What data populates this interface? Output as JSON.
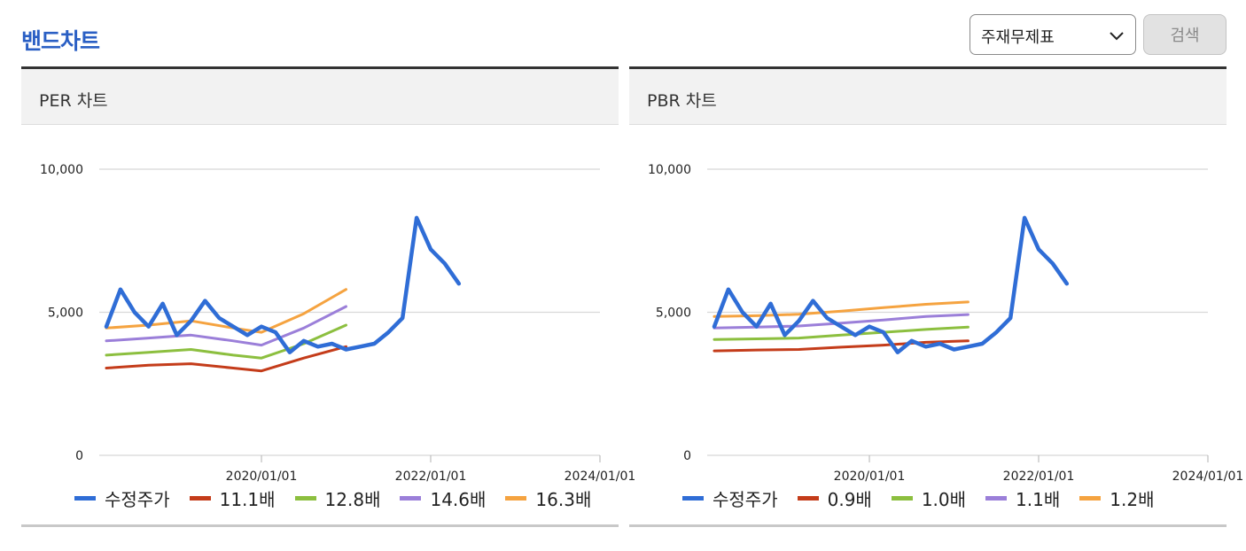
{
  "page": {
    "title": "밴드차트",
    "select": {
      "value": "주재무제표"
    },
    "search_label": "검색"
  },
  "colors": {
    "price": "#2f6dd6",
    "band1": "#c43c1a",
    "band2": "#8cbf3f",
    "band3": "#9b7fd9",
    "band4": "#f5a340"
  },
  "icons": {
    "select_chevron": "chevron-down-icon"
  },
  "chart_data": [
    {
      "type": "line",
      "title": "PER 차트",
      "ylim": [
        0,
        10000
      ],
      "y_ticks": [
        0,
        5000,
        10000
      ],
      "y_tick_labels": [
        "0",
        "5,000",
        "10,000"
      ],
      "x_ticks": [
        "2020/01/01",
        "2022/01/01",
        "2024/01/01"
      ],
      "xlim": [
        "2018/02/01",
        "2024/01/01"
      ],
      "grid": true,
      "legend_position": "bottom",
      "series": [
        {
          "name": "수정주가",
          "color": "#2f6dd6",
          "x": [
            "2018/03",
            "2018/05",
            "2018/07",
            "2018/09",
            "2018/11",
            "2019/01",
            "2019/03",
            "2019/05",
            "2019/07",
            "2019/09",
            "2019/11",
            "2020/01",
            "2020/03",
            "2020/05",
            "2020/07",
            "2020/09",
            "2020/11",
            "2021/01",
            "2021/03",
            "2021/05",
            "2021/07",
            "2021/09",
            "2021/11",
            "2022/01",
            "2022/03",
            "2022/05"
          ],
          "y": [
            4500,
            5800,
            5000,
            4500,
            5300,
            4200,
            4700,
            5400,
            4800,
            4500,
            4200,
            4500,
            4300,
            3600,
            4000,
            3800,
            3900,
            3700,
            3800,
            3900,
            4300,
            4800,
            8300,
            7200,
            6700,
            6000
          ]
        },
        {
          "name": "11.1배",
          "color": "#c43c1a",
          "x": [
            "2018/03",
            "2018/09",
            "2019/03",
            "2019/09",
            "2020/01",
            "2020/07",
            "2021/01"
          ],
          "y": [
            3050,
            3150,
            3200,
            3050,
            2950,
            3400,
            3800
          ]
        },
        {
          "name": "12.8배",
          "color": "#8cbf3f",
          "x": [
            "2018/03",
            "2018/09",
            "2019/03",
            "2019/09",
            "2020/01",
            "2020/07",
            "2021/01"
          ],
          "y": [
            3500,
            3600,
            3700,
            3500,
            3400,
            3900,
            4550
          ]
        },
        {
          "name": "14.6배",
          "color": "#9b7fd9",
          "x": [
            "2018/03",
            "2018/09",
            "2019/03",
            "2019/09",
            "2020/01",
            "2020/07",
            "2021/01"
          ],
          "y": [
            4000,
            4100,
            4200,
            4000,
            3850,
            4450,
            5200
          ]
        },
        {
          "name": "16.3배",
          "color": "#f5a340",
          "x": [
            "2018/03",
            "2018/09",
            "2019/03",
            "2019/09",
            "2020/01",
            "2020/07",
            "2021/01"
          ],
          "y": [
            4450,
            4550,
            4700,
            4450,
            4300,
            4950,
            5800
          ]
        }
      ]
    },
    {
      "type": "line",
      "title": "PBR 차트",
      "ylim": [
        0,
        10000
      ],
      "y_ticks": [
        0,
        5000,
        10000
      ],
      "y_tick_labels": [
        "0",
        "5,000",
        "10,000"
      ],
      "x_ticks": [
        "2020/01/01",
        "2022/01/01",
        "2024/01/01"
      ],
      "xlim": [
        "2018/02/01",
        "2024/01/01"
      ],
      "grid": true,
      "legend_position": "bottom",
      "series": [
        {
          "name": "수정주가",
          "color": "#2f6dd6",
          "x": [
            "2018/03",
            "2018/05",
            "2018/07",
            "2018/09",
            "2018/11",
            "2019/01",
            "2019/03",
            "2019/05",
            "2019/07",
            "2019/09",
            "2019/11",
            "2020/01",
            "2020/03",
            "2020/05",
            "2020/07",
            "2020/09",
            "2020/11",
            "2021/01",
            "2021/03",
            "2021/05",
            "2021/07",
            "2021/09",
            "2021/11",
            "2022/01",
            "2022/03",
            "2022/05"
          ],
          "y": [
            4500,
            5800,
            5000,
            4500,
            5300,
            4200,
            4700,
            5400,
            4800,
            4500,
            4200,
            4500,
            4300,
            3600,
            4000,
            3800,
            3900,
            3700,
            3800,
            3900,
            4300,
            4800,
            8300,
            7200,
            6700,
            6000
          ]
        },
        {
          "name": "0.9배",
          "color": "#c43c1a",
          "x": [
            "2018/03",
            "2018/09",
            "2019/03",
            "2019/09",
            "2020/03",
            "2020/09",
            "2021/03"
          ],
          "y": [
            3650,
            3680,
            3700,
            3780,
            3850,
            3950,
            4000
          ]
        },
        {
          "name": "1.0배",
          "color": "#8cbf3f",
          "x": [
            "2018/03",
            "2018/09",
            "2019/03",
            "2019/09",
            "2020/03",
            "2020/09",
            "2021/03"
          ],
          "y": [
            4050,
            4070,
            4100,
            4200,
            4300,
            4400,
            4480
          ]
        },
        {
          "name": "1.1배",
          "color": "#9b7fd9",
          "x": [
            "2018/03",
            "2018/09",
            "2019/03",
            "2019/09",
            "2020/03",
            "2020/09",
            "2021/03"
          ],
          "y": [
            4450,
            4480,
            4520,
            4620,
            4730,
            4850,
            4920
          ]
        },
        {
          "name": "1.2배",
          "color": "#f5a340",
          "x": [
            "2018/03",
            "2018/09",
            "2019/03",
            "2019/09",
            "2020/03",
            "2020/09",
            "2021/03"
          ],
          "y": [
            4850,
            4880,
            4930,
            5040,
            5160,
            5280,
            5360
          ]
        }
      ]
    }
  ]
}
